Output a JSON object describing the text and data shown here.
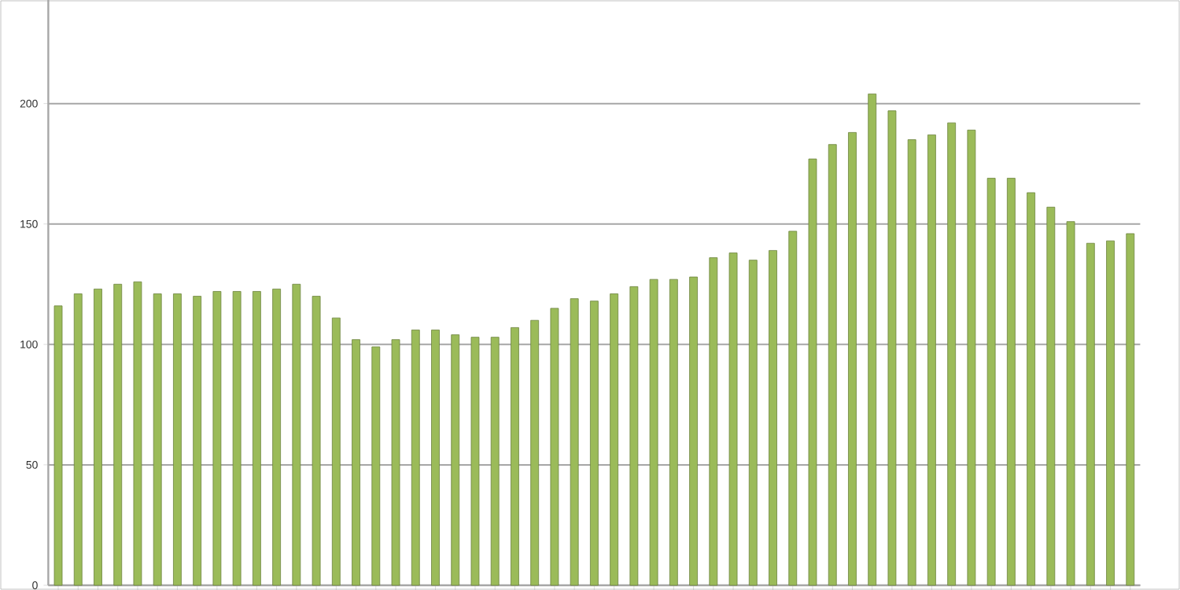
{
  "chart_data": {
    "type": "bar",
    "categories": [
      null,
      null,
      null,
      null,
      null,
      null,
      null,
      null,
      null,
      null,
      null,
      null,
      null,
      null,
      null,
      null,
      null,
      null,
      null,
      null,
      null,
      null,
      null,
      null,
      null,
      null,
      null,
      null,
      null,
      null,
      null,
      null,
      null,
      null,
      null,
      null,
      null,
      null,
      null,
      null,
      null,
      null,
      null,
      null,
      null,
      null,
      null,
      null,
      null,
      null,
      null,
      null,
      null,
      null,
      null
    ],
    "values": [
      116,
      121,
      123,
      125,
      126,
      121,
      121,
      120,
      122,
      122,
      122,
      123,
      125,
      120,
      111,
      102,
      99,
      102,
      106,
      106,
      104,
      103,
      103,
      107,
      110,
      115,
      119,
      118,
      121,
      124,
      127,
      127,
      128,
      136,
      138,
      135,
      139,
      147,
      177,
      183,
      188,
      204,
      197,
      185,
      187,
      192,
      189,
      169,
      169,
      163,
      157,
      151,
      142,
      143,
      146
    ],
    "color": "#9bbb59",
    "ylim": [
      0,
      243
    ],
    "yticks": [
      0,
      50,
      100,
      150,
      200
    ],
    "grid": "y",
    "tick_labels": "y"
  }
}
